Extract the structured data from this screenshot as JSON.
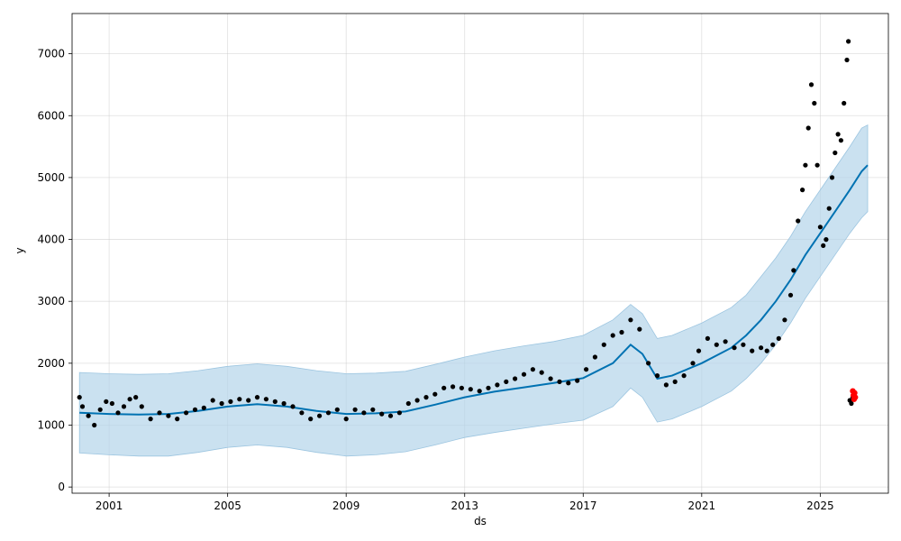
{
  "chart_data": {
    "type": "line",
    "title": "",
    "xlabel": "ds",
    "ylabel": "y",
    "xlim": [
      1999.75,
      2027.3
    ],
    "ylim": [
      -100,
      7650
    ],
    "x_ticks": [
      2001,
      2005,
      2009,
      2013,
      2017,
      2021,
      2025
    ],
    "y_ticks": [
      0,
      1000,
      2000,
      3000,
      4000,
      5000,
      6000,
      7000
    ],
    "grid": true,
    "legend": "none",
    "colors": {
      "forecast_line": "#0072b2",
      "uncertainty_band": "#b3d4ea",
      "actual_points": "#000000",
      "highlight_points": "#ff0000"
    },
    "series": [
      {
        "kind": "forecast_line",
        "x": [
          2000.0,
          2001.0,
          2002.0,
          2003.0,
          2004.0,
          2005.0,
          2006.0,
          2007.0,
          2008.0,
          2009.0,
          2010.0,
          2011.0,
          2012.0,
          2013.0,
          2014.0,
          2015.0,
          2016.0,
          2017.0,
          2018.0,
          2018.6,
          2019.0,
          2019.5,
          2020.0,
          2021.0,
          2022.0,
          2022.5,
          2023.0,
          2023.5,
          2024.0,
          2024.5,
          2025.0,
          2025.5,
          2026.0,
          2026.4,
          2026.6
        ],
        "y": [
          1200,
          1180,
          1170,
          1180,
          1230,
          1300,
          1340,
          1300,
          1230,
          1180,
          1190,
          1220,
          1330,
          1450,
          1540,
          1610,
          1680,
          1760,
          2000,
          2300,
          2150,
          1750,
          1800,
          2000,
          2250,
          2450,
          2700,
          3000,
          3350,
          3750,
          4100,
          4450,
          4800,
          5100,
          5200
        ]
      },
      {
        "kind": "uncertainty_upper",
        "x": [
          2000.0,
          2001.0,
          2002.0,
          2003.0,
          2004.0,
          2005.0,
          2006.0,
          2007.0,
          2008.0,
          2009.0,
          2010.0,
          2011.0,
          2012.0,
          2013.0,
          2014.0,
          2015.0,
          2016.0,
          2017.0,
          2018.0,
          2018.6,
          2019.0,
          2019.5,
          2020.0,
          2021.0,
          2022.0,
          2022.5,
          2023.0,
          2023.5,
          2024.0,
          2024.5,
          2025.0,
          2025.5,
          2026.0,
          2026.4,
          2026.6
        ],
        "y": [
          1850,
          1830,
          1820,
          1830,
          1880,
          1950,
          1990,
          1950,
          1880,
          1830,
          1840,
          1870,
          1980,
          2100,
          2200,
          2280,
          2350,
          2450,
          2700,
          2950,
          2800,
          2400,
          2450,
          2650,
          2900,
          3100,
          3400,
          3700,
          4050,
          4450,
          4800,
          5150,
          5500,
          5800,
          5850
        ]
      },
      {
        "kind": "uncertainty_lower",
        "x": [
          2000.0,
          2001.0,
          2002.0,
          2003.0,
          2004.0,
          2005.0,
          2006.0,
          2007.0,
          2008.0,
          2009.0,
          2010.0,
          2011.0,
          2012.0,
          2013.0,
          2014.0,
          2015.0,
          2016.0,
          2017.0,
          2018.0,
          2018.6,
          2019.0,
          2019.5,
          2020.0,
          2021.0,
          2022.0,
          2022.5,
          2023.0,
          2023.5,
          2024.0,
          2024.5,
          2025.0,
          2025.5,
          2026.0,
          2026.4,
          2026.6
        ],
        "y": [
          550,
          520,
          500,
          500,
          560,
          640,
          680,
          640,
          560,
          500,
          520,
          570,
          680,
          800,
          880,
          950,
          1020,
          1080,
          1300,
          1600,
          1450,
          1050,
          1100,
          1300,
          1550,
          1750,
          2000,
          2300,
          2650,
          3050,
          3400,
          3750,
          4100,
          4350,
          4450
        ]
      },
      {
        "kind": "actual_points",
        "x": [
          2000.0,
          2000.1,
          2000.3,
          2000.5,
          2000.7,
          2000.9,
          2001.1,
          2001.3,
          2001.5,
          2001.7,
          2001.9,
          2002.1,
          2002.4,
          2002.7,
          2003.0,
          2003.3,
          2003.6,
          2003.9,
          2004.2,
          2004.5,
          2004.8,
          2005.1,
          2005.4,
          2005.7,
          2006.0,
          2006.3,
          2006.6,
          2006.9,
          2007.2,
          2007.5,
          2007.8,
          2008.1,
          2008.4,
          2008.7,
          2009.0,
          2009.3,
          2009.6,
          2009.9,
          2010.2,
          2010.5,
          2010.8,
          2011.1,
          2011.4,
          2011.7,
          2012.0,
          2012.3,
          2012.6,
          2012.9,
          2013.2,
          2013.5,
          2013.8,
          2014.1,
          2014.4,
          2014.7,
          2015.0,
          2015.3,
          2015.6,
          2015.9,
          2016.2,
          2016.5,
          2016.8,
          2017.1,
          2017.4,
          2017.7,
          2018.0,
          2018.3,
          2018.6,
          2018.9,
          2019.2,
          2019.5,
          2019.8,
          2020.1,
          2020.4,
          2020.7,
          2020.9,
          2021.2,
          2021.5,
          2021.8,
          2022.1,
          2022.4,
          2022.7,
          2023.0,
          2023.2,
          2023.4,
          2023.6,
          2023.8,
          2024.0,
          2024.1,
          2024.25,
          2024.4,
          2024.5,
          2024.6,
          2024.7,
          2024.8,
          2024.9,
          2025.0,
          2025.1,
          2025.2,
          2025.3,
          2025.4,
          2025.5,
          2025.6,
          2025.7,
          2025.8,
          2025.9,
          2025.95,
          2026.0,
          2026.05,
          2026.1
        ],
        "y": [
          1450,
          1300,
          1150,
          1000,
          1250,
          1380,
          1350,
          1200,
          1300,
          1420,
          1450,
          1300,
          1100,
          1200,
          1150,
          1100,
          1200,
          1250,
          1280,
          1400,
          1350,
          1380,
          1420,
          1400,
          1450,
          1420,
          1380,
          1350,
          1300,
          1200,
          1100,
          1150,
          1200,
          1250,
          1100,
          1250,
          1200,
          1250,
          1180,
          1150,
          1200,
          1350,
          1400,
          1450,
          1500,
          1600,
          1620,
          1600,
          1580,
          1550,
          1600,
          1650,
          1700,
          1750,
          1820,
          1900,
          1850,
          1750,
          1700,
          1680,
          1720,
          1900,
          2100,
          2300,
          2450,
          2500,
          2700,
          2550,
          2000,
          1800,
          1650,
          1700,
          1800,
          2000,
          2200,
          2400,
          2300,
          2350,
          2250,
          2300,
          2200,
          2250,
          2200,
          2300,
          2400,
          2700,
          3100,
          3500,
          4300,
          4800,
          5200,
          5800,
          6500,
          6200,
          5200,
          4200,
          3900,
          4000,
          4500,
          5000,
          5400,
          5700,
          5600,
          6200,
          6900,
          7200,
          1400,
          1350,
          1450
        ]
      },
      {
        "kind": "highlight_points",
        "x": [
          2026.1,
          2026.12,
          2026.14,
          2026.16,
          2026.18
        ],
        "y": [
          1550,
          1480,
          1420,
          1520,
          1450
        ]
      }
    ]
  }
}
